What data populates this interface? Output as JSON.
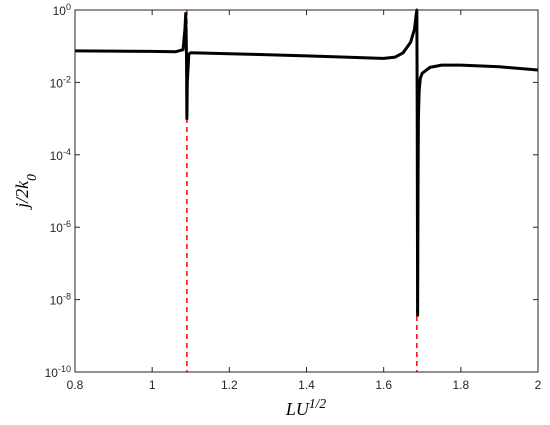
{
  "chart_data": {
    "type": "line",
    "xlabel": "LU^1/2",
    "ylabel": "j/2k_0",
    "x": [
      0.8,
      0.9,
      1.0,
      1.06,
      1.08,
      1.085,
      1.087,
      1.089,
      1.09,
      1.091,
      1.095,
      1.1,
      1.2,
      1.3,
      1.4,
      1.5,
      1.6,
      1.63,
      1.65,
      1.67,
      1.68,
      1.684,
      1.686,
      1.687,
      1.688,
      1.689,
      1.69,
      1.692,
      1.695,
      1.7,
      1.72,
      1.75,
      1.8,
      1.9,
      2.0
    ],
    "series": [
      {
        "color": "#000000",
        "values": [
          0.074,
          0.073,
          0.072,
          0.07,
          0.08,
          0.3,
          0.8,
          0.05,
          0.001,
          0.01,
          0.06,
          0.066,
          0.062,
          0.058,
          0.054,
          0.05,
          0.046,
          0.05,
          0.065,
          0.13,
          0.3,
          0.7,
          1.0,
          0.001,
          3.7e-09,
          1e-05,
          0.001,
          0.006,
          0.013,
          0.018,
          0.026,
          0.03,
          0.03,
          0.027,
          0.022
        ]
      }
    ],
    "vlines": [
      1.09,
      1.686
    ],
    "vline_color": "#ff0000",
    "xlim": [
      0.8,
      2
    ],
    "xticks": [
      0.8,
      1,
      1.2,
      1.4,
      1.6,
      1.8,
      2
    ],
    "ylim": [
      1e-10,
      1
    ],
    "log_y": true,
    "yticks": [
      {
        "value": 1e-10,
        "label": "10^-10"
      },
      {
        "value": 1e-08,
        "label": "10^-8"
      },
      {
        "value": 1e-06,
        "label": "10^-6"
      },
      {
        "value": 0.0001,
        "label": "10^-4"
      },
      {
        "value": 0.01,
        "label": "10^-2"
      },
      {
        "value": 1,
        "label": "10^0"
      }
    ]
  }
}
